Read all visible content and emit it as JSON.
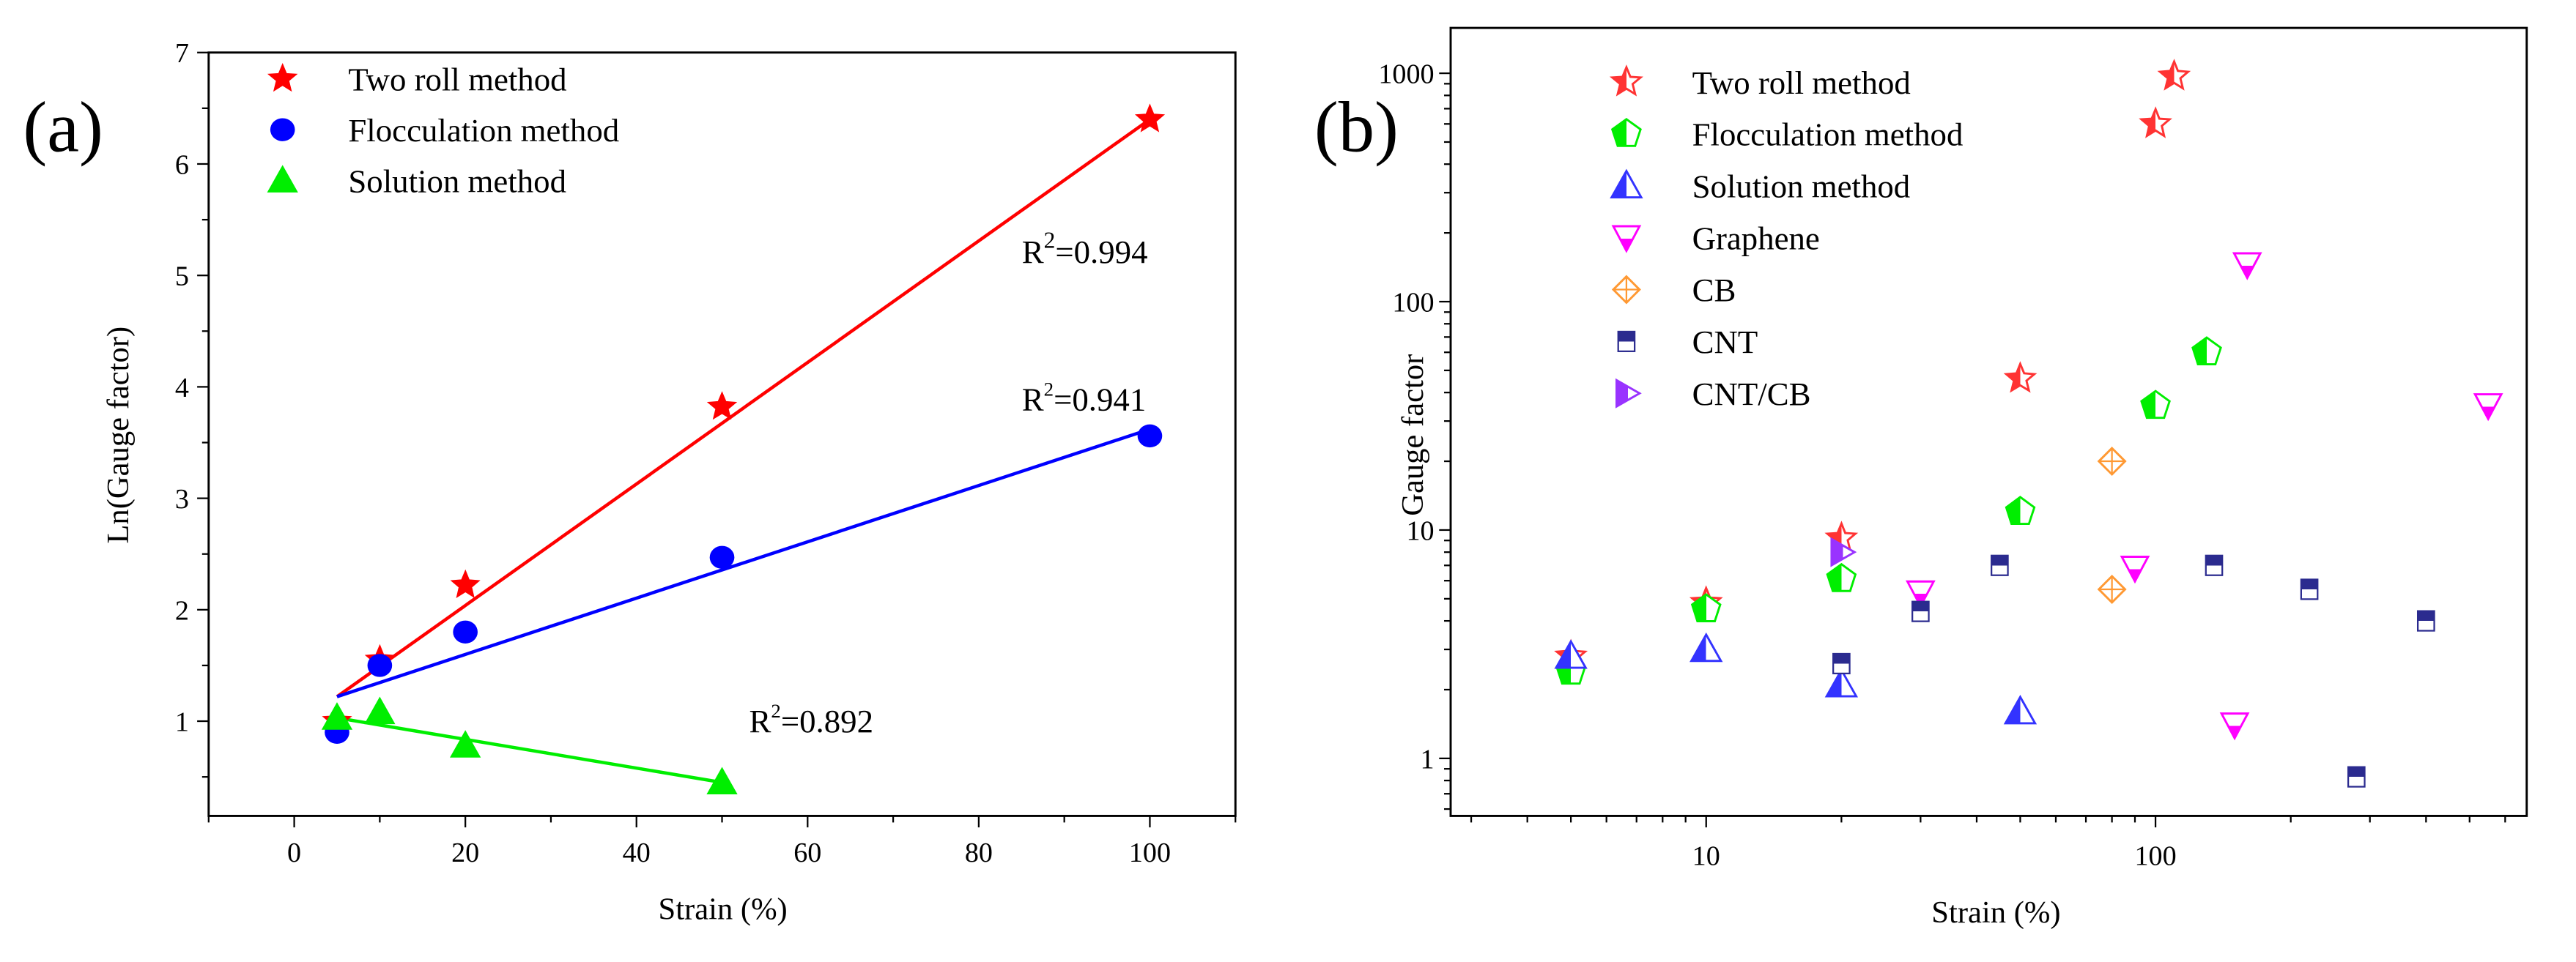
{
  "colors": {
    "red": "#ff0000",
    "blue": "#0000ff",
    "green": "#00ee00",
    "magenta": "#ff00ff",
    "orange": "#ff9933",
    "navy": "#2b2b8f",
    "purple": "#9933ff"
  },
  "chart_data": [
    {
      "panel_label": "(a)",
      "type": "scatter",
      "xlabel": "Strain (%)",
      "ylabel": "Ln(Gauge factor)",
      "xlim": [
        -10,
        110
      ],
      "ylim": [
        0.15,
        7
      ],
      "xticks": [
        "0",
        "20",
        "40",
        "60",
        "80",
        "100"
      ],
      "xtick_values": [
        0,
        20,
        40,
        60,
        80,
        100
      ],
      "yticks": [
        "1",
        "2",
        "3",
        "4",
        "5",
        "6",
        "7"
      ],
      "ytick_values": [
        1,
        2,
        3,
        4,
        5,
        6,
        7
      ],
      "legend_position": "top-left",
      "series": [
        {
          "name": "Two roll method",
          "marker": "star",
          "color": "#ff0000",
          "x": [
            5,
            10,
            20,
            50,
            100
          ],
          "y": [
            1.0,
            1.55,
            2.22,
            3.82,
            6.4
          ],
          "fit": {
            "x": [
              5,
              100
            ],
            "y": [
              1.22,
              6.4
            ]
          },
          "r2_label": "R",
          "r2_value": "=0.994"
        },
        {
          "name": "Flocculation method",
          "marker": "circle",
          "color": "#0000ff",
          "x": [
            5,
            10,
            20,
            50,
            100
          ],
          "y": [
            0.9,
            1.5,
            1.8,
            2.47,
            3.56
          ],
          "fit": {
            "x": [
              5,
              100
            ],
            "y": [
              1.22,
              3.62
            ]
          },
          "r2_label": "R",
          "r2_value": "=0.941"
        },
        {
          "name": "Solution method",
          "marker": "triangle",
          "color": "#00ee00",
          "x": [
            5,
            10,
            20,
            50
          ],
          "y": [
            1.03,
            1.08,
            0.78,
            0.45
          ],
          "fit": {
            "x": [
              5,
              50
            ],
            "y": [
              1.03,
              0.45
            ]
          },
          "r2_label": "R",
          "r2_value": "=0.892"
        }
      ]
    },
    {
      "panel_label": "(b)",
      "type": "scatter",
      "xscale": "log",
      "yscale": "log",
      "xlabel": "Strain (%)",
      "ylabel": "Gauge factor",
      "xlim": [
        2.7,
        670
      ],
      "ylim": [
        0.56,
        1580
      ],
      "xticks": [
        "10",
        "100"
      ],
      "xtick_values": [
        10,
        100
      ],
      "yticks": [
        "1",
        "10",
        "100",
        "1000"
      ],
      "ytick_values": [
        1,
        10,
        100,
        1000
      ],
      "legend_position": "top-left",
      "series": [
        {
          "name": "Two roll method",
          "marker": "star",
          "color": "#ff3333",
          "x": [
            5,
            10,
            20,
            50,
            100,
            110
          ],
          "y": [
            2.8,
            4.8,
            9.2,
            46,
            600,
            970
          ]
        },
        {
          "name": "Flocculation method",
          "marker": "pentagon",
          "color": "#00ee00",
          "x": [
            5,
            10,
            20,
            50,
            100,
            130
          ],
          "y": [
            2.4,
            4.5,
            6.1,
            12,
            35,
            60
          ]
        },
        {
          "name": "Solution method",
          "marker": "triangle",
          "color": "#3333ff",
          "x": [
            5,
            10,
            20,
            50
          ],
          "y": [
            2.8,
            3.0,
            2.1,
            1.6
          ]
        },
        {
          "name": "Graphene",
          "marker": "down-triangle",
          "color": "#ff00ff",
          "x": [
            30,
            90,
            150,
            160,
            550
          ],
          "y": [
            5.3,
            6.8,
            1.4,
            145,
            35
          ]
        },
        {
          "name": "CB",
          "marker": "diamond-cross",
          "color": "#ff9933",
          "x": [
            80,
            80
          ],
          "y": [
            20,
            5.5
          ]
        },
        {
          "name": "CNT",
          "marker": "square",
          "color": "#2b2b8f",
          "x": [
            20,
            30,
            45,
            135,
            220,
            280,
            400
          ],
          "y": [
            2.6,
            4.4,
            7.0,
            7.0,
            5.5,
            0.83,
            4.0
          ]
        },
        {
          "name": "CNT/CB",
          "marker": "right-triangle",
          "color": "#9933ff",
          "x": [
            20
          ],
          "y": [
            8.0
          ]
        }
      ]
    }
  ]
}
